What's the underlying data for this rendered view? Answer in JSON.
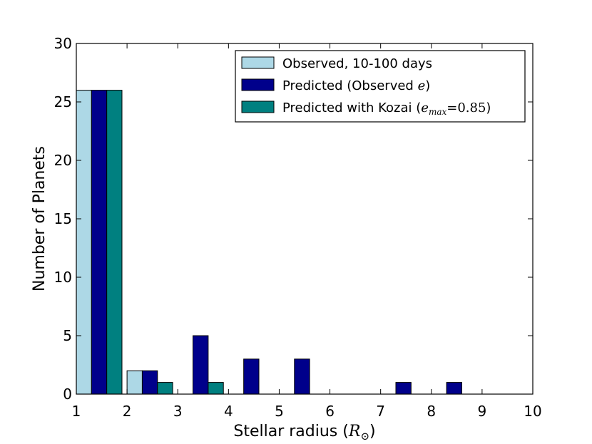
{
  "chart_data": {
    "type": "bar",
    "xlabel": "Stellar radius (",
    "xlabel_math": "R",
    "xlabel_sub": "⊙",
    "xlabel_close": ")",
    "ylabel": "Number of Planets",
    "xlim": [
      1,
      10
    ],
    "ylim": [
      0,
      30
    ],
    "xticks": [
      "1",
      "2",
      "3",
      "4",
      "5",
      "6",
      "7",
      "8",
      "9",
      "10"
    ],
    "yticks": [
      "0",
      "5",
      "10",
      "15",
      "20",
      "25",
      "30"
    ],
    "bin_edges": [
      1,
      2,
      3,
      4,
      5,
      6,
      7,
      8,
      9,
      10
    ],
    "legend_position": "top-right",
    "series": [
      {
        "name": "Observed, 10-100 days",
        "color": "#add8e6",
        "values": [
          26,
          2,
          0,
          0,
          0,
          0,
          0,
          0,
          0
        ]
      },
      {
        "name": "Predicted (Observed ",
        "name_math": "e",
        "name_close": ")",
        "color": "#00008b",
        "values": [
          26,
          2,
          5,
          3,
          3,
          0,
          1,
          1,
          0
        ]
      },
      {
        "name": "Predicted with Kozai (",
        "name_math": "e",
        "name_sub": "max",
        "name_eq": "=0.85",
        "name_close": ")",
        "color": "#008080",
        "values": [
          26,
          1,
          1,
          0,
          0,
          0,
          0,
          0,
          0
        ]
      }
    ]
  }
}
